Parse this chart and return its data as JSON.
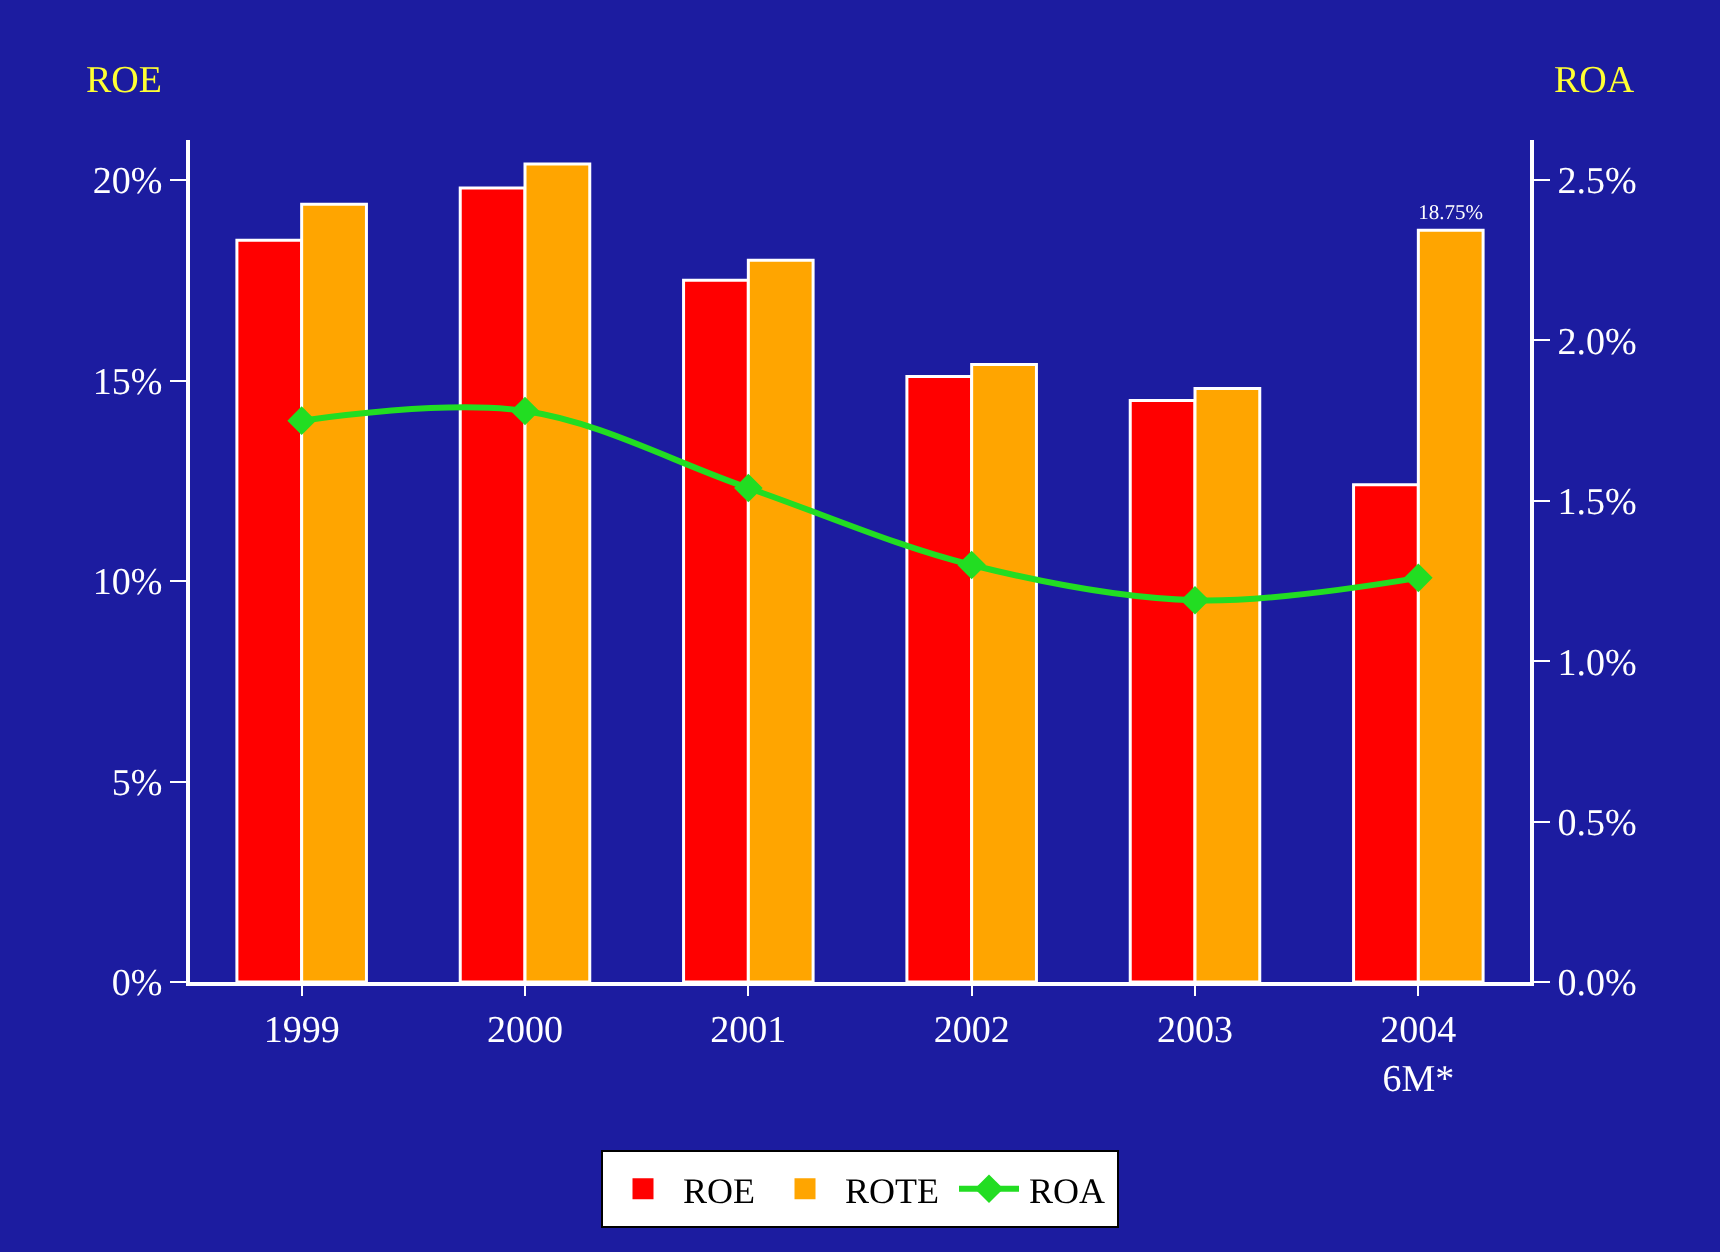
{
  "chart_data": {
    "type": "bar",
    "ylabel": "ROE",
    "y2label": "ROA",
    "categories": [
      "1999",
      "2000",
      "2001",
      "2002",
      "2003",
      "2004\n6M*"
    ],
    "series": [
      {
        "name": "ROE",
        "color": "#ff0000",
        "values": [
          18.5,
          19.8,
          17.5,
          15.1,
          14.5,
          12.4
        ]
      },
      {
        "name": "ROTE",
        "color": "#ffa500",
        "values": [
          19.4,
          20.4,
          18.0,
          15.4,
          14.8,
          18.75
        ],
        "value_labels": [
          null,
          null,
          null,
          null,
          null,
          "18.75%"
        ]
      },
      {
        "name": "ROA",
        "type": "line",
        "axis": "y2",
        "color": "#22dd22",
        "marker": "diamond",
        "values": [
          1.75,
          1.78,
          1.54,
          1.3,
          1.19,
          1.26
        ]
      }
    ],
    "ylim": [
      0,
      21
    ],
    "yticks": [
      {
        "value": 0,
        "label": "0%"
      },
      {
        "value": 5,
        "label": "5%"
      },
      {
        "value": 10,
        "label": "10%"
      },
      {
        "value": 15,
        "label": "15%"
      },
      {
        "value": 20,
        "label": "20%"
      }
    ],
    "y2lim": [
      0,
      2.625
    ],
    "y2ticks": [
      {
        "value": 0,
        "label": "0.0%"
      },
      {
        "value": 0.5,
        "label": "0.5%"
      },
      {
        "value": 1.0,
        "label": "1.0%"
      },
      {
        "value": 1.5,
        "label": "1.5%"
      },
      {
        "value": 2.0,
        "label": "2.0%"
      },
      {
        "value": 2.5,
        "label": "2.5%"
      }
    ],
    "grid": false,
    "legend": "bottom"
  }
}
